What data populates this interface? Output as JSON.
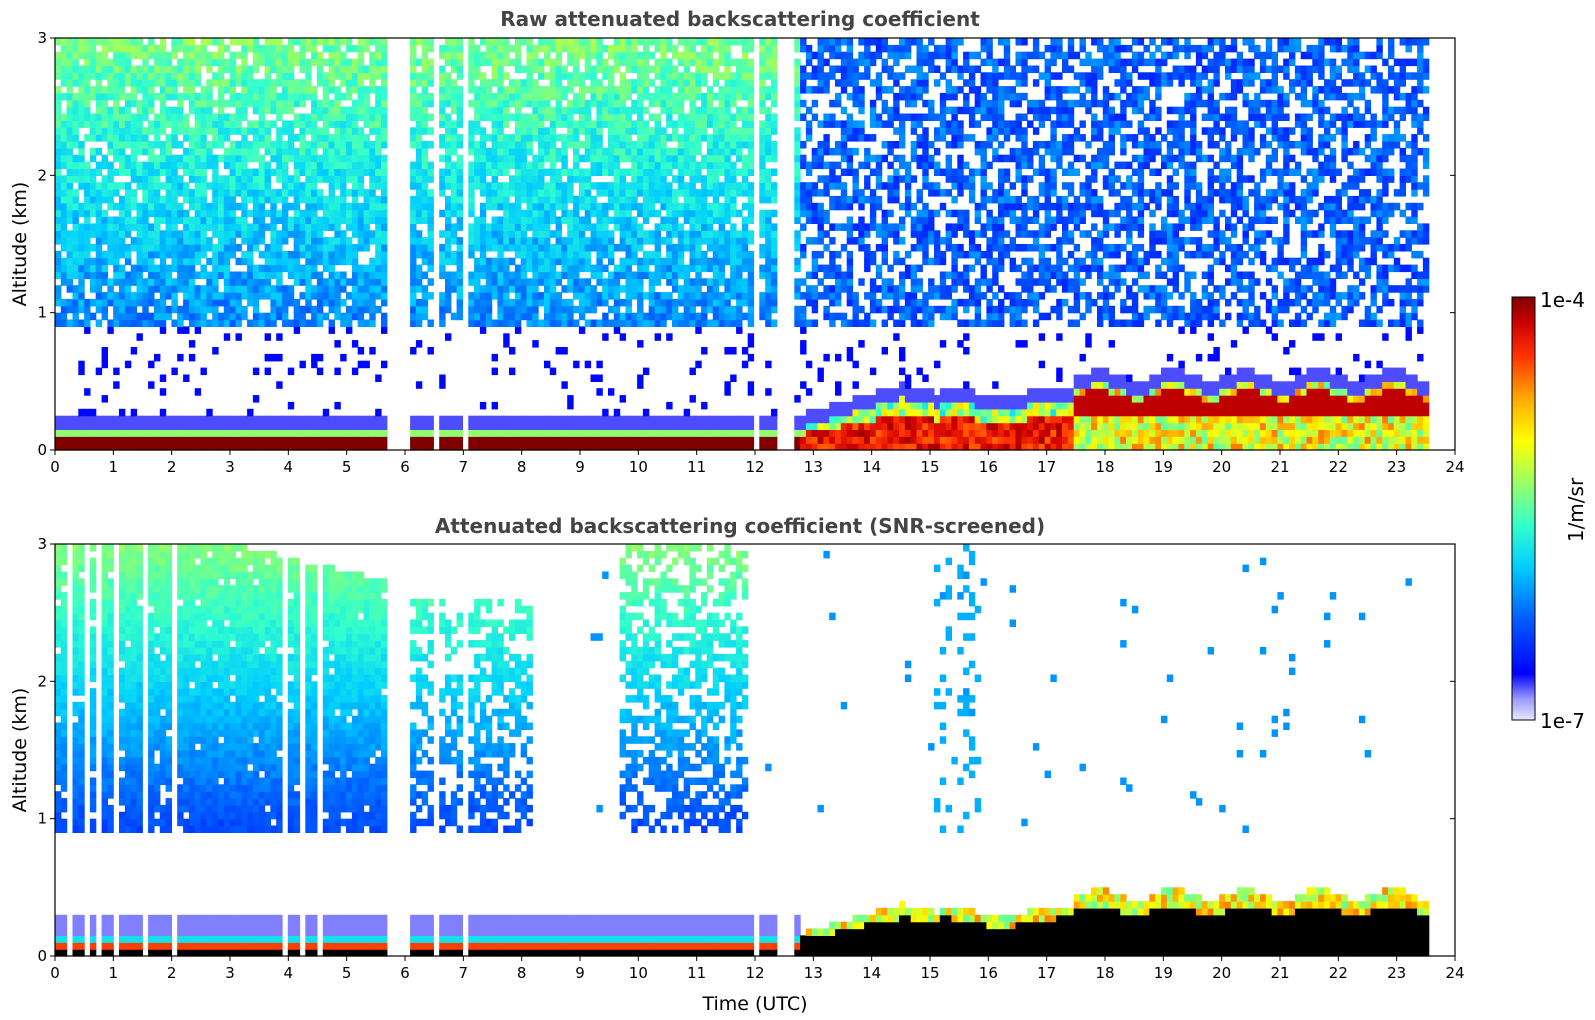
{
  "chart_data": [
    {
      "type": "heatmap",
      "title": "Raw attenuated backscattering coefficient",
      "xlabel": "",
      "ylabel": "Altitude (km)",
      "xlim": [
        0,
        24
      ],
      "ylim": [
        0,
        3
      ],
      "x_ticks": [
        "0",
        "1",
        "2",
        "3",
        "4",
        "5",
        "6",
        "7",
        "8",
        "9",
        "10",
        "11",
        "12",
        "13",
        "14",
        "15",
        "16",
        "17",
        "18",
        "19",
        "20",
        "21",
        "22",
        "23",
        "24"
      ],
      "y_ticks": [
        "0",
        "1",
        "2",
        "3"
      ],
      "data_end_time": 23.55,
      "description_regions": [
        {
          "time": [
            0,
            12.8
          ],
          "alt": [
            0,
            0.15
          ],
          "level": "high"
        },
        {
          "time": [
            12.8,
            17.5
          ],
          "alt": [
            0,
            0.4
          ],
          "level": "high"
        },
        {
          "time": [
            17.5,
            23.55
          ],
          "alt": [
            0.1,
            0.45
          ],
          "level": "high"
        },
        {
          "time": [
            0,
            12.8
          ],
          "alt": [
            0.9,
            3
          ],
          "level": "medium"
        },
        {
          "time": [
            12.8,
            23.55
          ],
          "alt": [
            0.8,
            3
          ],
          "level": "low-noisy"
        }
      ],
      "gap_times": [
        5.72,
        5.82,
        5.92,
        6.02,
        6.08,
        6.52,
        7.05,
        12.05,
        12.42,
        12.55,
        12.62
      ]
    },
    {
      "type": "heatmap",
      "title": "Attenuated backscattering coefficient (SNR-screened)",
      "xlabel": "Time (UTC)",
      "ylabel": "Altitude (km)",
      "xlim": [
        0,
        24
      ],
      "ylim": [
        0,
        3
      ],
      "x_ticks": [
        "0",
        "1",
        "2",
        "3",
        "4",
        "5",
        "6",
        "7",
        "8",
        "9",
        "10",
        "11",
        "12",
        "13",
        "14",
        "15",
        "16",
        "17",
        "18",
        "19",
        "20",
        "21",
        "22",
        "23",
        "24"
      ],
      "y_ticks": [
        "0",
        "1",
        "2",
        "3"
      ],
      "data_end_time": 23.55,
      "gap_times": [
        0.2,
        0.55,
        0.75,
        1.05,
        1.55,
        2.05,
        3.95,
        4.2,
        4.5,
        5.72,
        5.82,
        5.92,
        6.02,
        6.08,
        6.52,
        7.05,
        12.05,
        12.42,
        12.55,
        12.62
      ]
    }
  ],
  "colorbar": {
    "label": "1/m/sr",
    "max_label": "1e-4",
    "min_label": "1e-7",
    "scale": "log",
    "range": [
      1e-07,
      0.0001
    ],
    "colormap": "jet"
  }
}
